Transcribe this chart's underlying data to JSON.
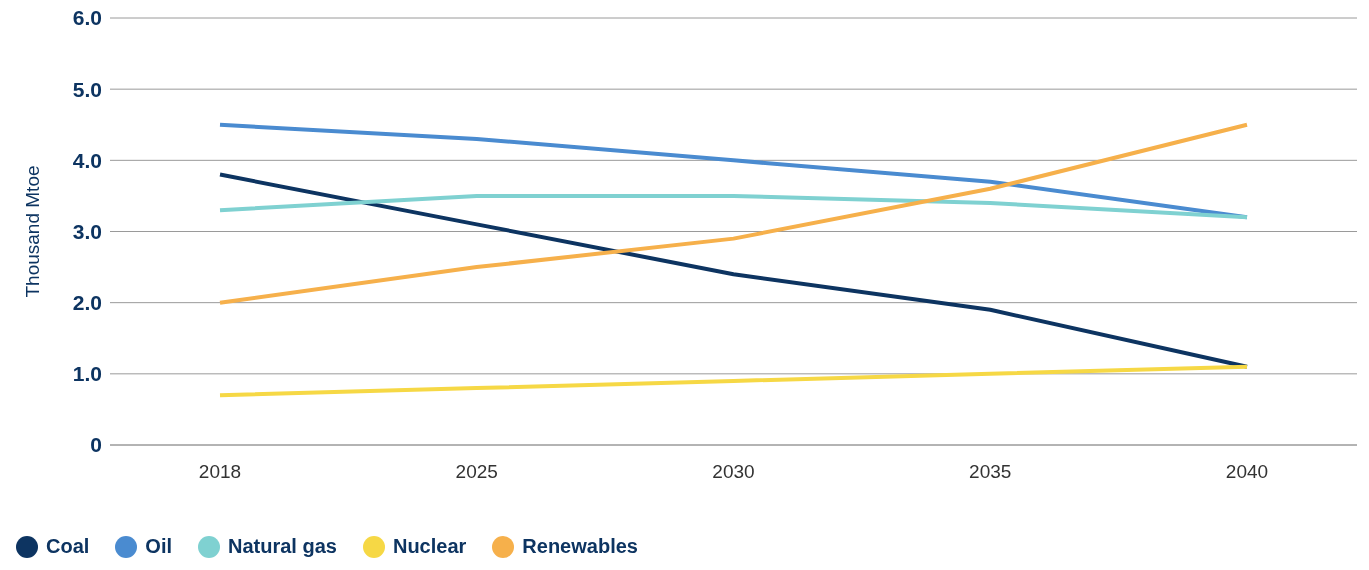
{
  "chart_data": {
    "type": "line",
    "ylabel": "Thousand Mtoe",
    "categories": [
      "2018",
      "2025",
      "2030",
      "2035",
      "2040"
    ],
    "series": [
      {
        "name": "Coal",
        "color": "#0d3461",
        "values": [
          3.8,
          3.1,
          2.4,
          1.9,
          1.1
        ]
      },
      {
        "name": "Oil",
        "color": "#4a8bd0",
        "values": [
          4.5,
          4.3,
          4.0,
          3.7,
          3.2
        ]
      },
      {
        "name": "Natural gas",
        "color": "#7fd1d1",
        "values": [
          3.3,
          3.5,
          3.5,
          3.4,
          3.2
        ]
      },
      {
        "name": "Nuclear",
        "color": "#f6d845",
        "values": [
          0.7,
          0.8,
          0.9,
          1.0,
          1.1
        ]
      },
      {
        "name": "Renewables",
        "color": "#f6b04b",
        "values": [
          2.0,
          2.5,
          2.9,
          3.6,
          4.5
        ]
      }
    ],
    "ylim": [
      0,
      6
    ],
    "yticks": [
      {
        "value": 0,
        "label": "0"
      },
      {
        "value": 1,
        "label": "1.0"
      },
      {
        "value": 2,
        "label": "2.0"
      },
      {
        "value": 3,
        "label": "3.0"
      },
      {
        "value": 4,
        "label": "4.0"
      },
      {
        "value": 5,
        "label": "5.0"
      },
      {
        "value": 6,
        "label": "6.0"
      }
    ],
    "grid": "y",
    "legend": "bottom left",
    "marker": "none",
    "line_style": "solid"
  }
}
